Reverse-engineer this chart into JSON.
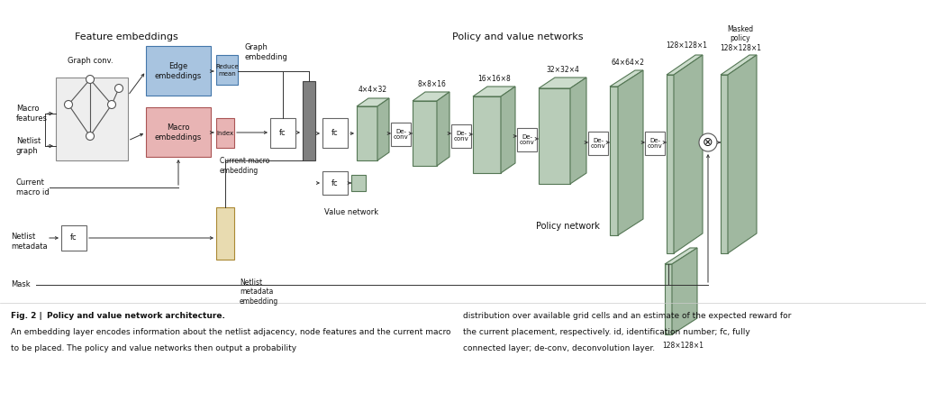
{
  "bg_color": "#ffffff",
  "colors": {
    "edge_emb": "#a8c4e0",
    "macro_emb": "#e8b4b4",
    "graph_conv_bg": "#eeeeee",
    "reduce_mean": "#a8c4e0",
    "macro_index": "#e8b4b4",
    "netlist_meta": "#e8dbb0",
    "deconv_front": "#b8ccb8",
    "deconv_top": "#ccdccc",
    "deconv_right": "#a0b8a0",
    "concat_dark": "#808080",
    "arrow_color": "#333333",
    "box_ec": "#666666"
  },
  "section_label_feature": "Feature embeddings",
  "section_label_policy": "Policy and value networks",
  "caption_bold": "Fig. 2 | Policy and value network architecture.",
  "caption_italic_end": "",
  "caption_line2": "An embedding layer encodes information about the netlist adjacency, node features and the current macro",
  "caption_line3": "to be placed. The policy and value networks then output a probability",
  "caption2_line1": "distribution over available grid cells and an estimate of the expected reward for",
  "caption2_line2": "the current placement, respectively. id, identification number; fc, fully",
  "caption2_line3": "connected layer; de-conv, deconvolution layer."
}
